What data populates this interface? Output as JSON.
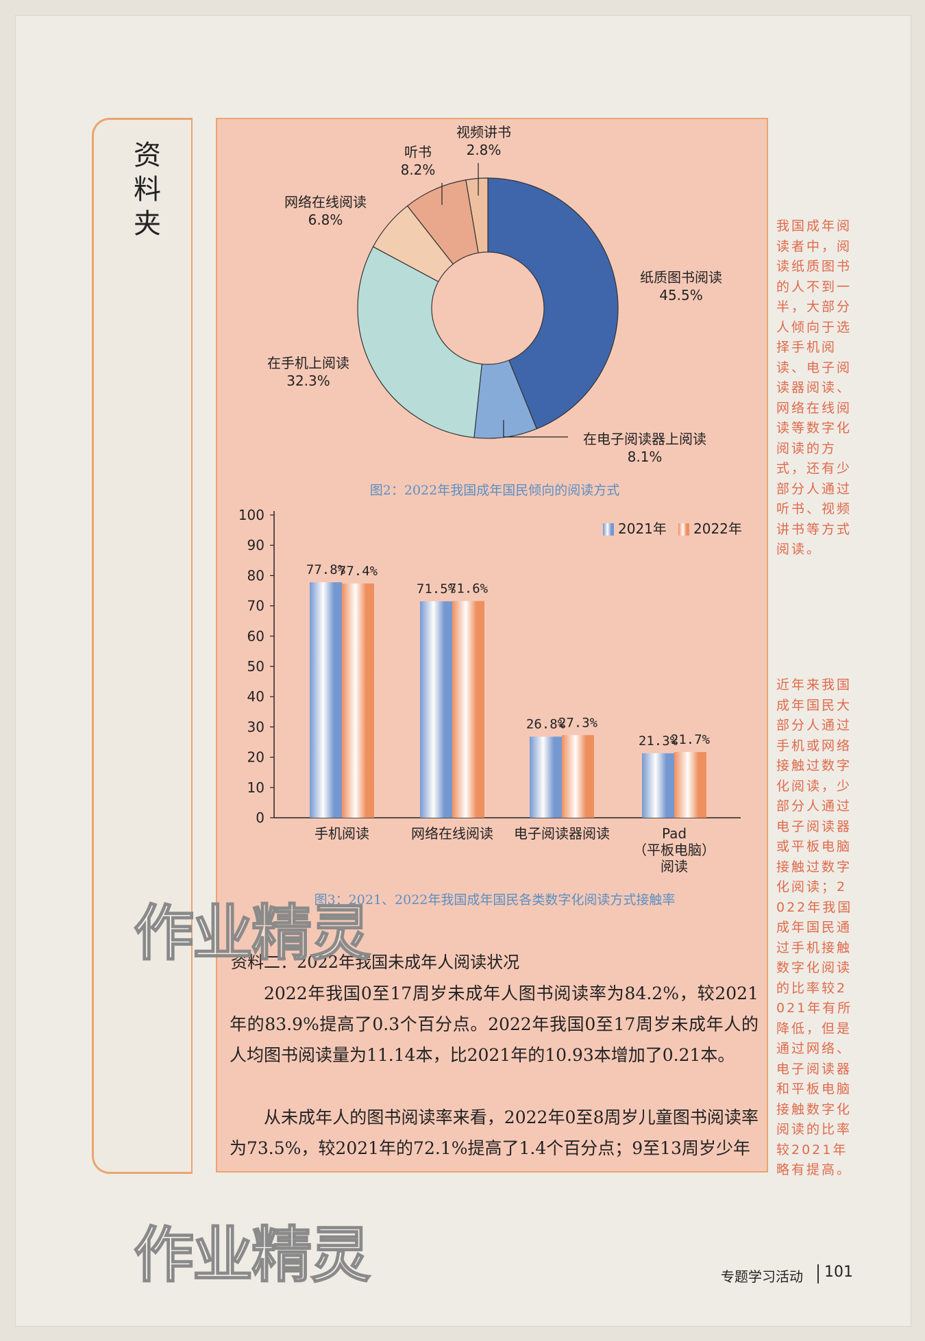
{
  "sidebar_title": "资料夹",
  "chart_data": [
    {
      "type": "pie",
      "donut": true,
      "categories": [
        "纸质图书阅读",
        "在电子阅读器上阅读",
        "在手机上阅读",
        "网络在线阅读",
        "听书",
        "视频讲书"
      ],
      "values": [
        45.5,
        8.1,
        32.3,
        6.8,
        8.2,
        2.8
      ],
      "value_labels": [
        "45.5%",
        "8.1%",
        "32.3%",
        "6.8%",
        "8.2%",
        "2.8%"
      ],
      "colors": [
        "#3f66aa",
        "#86abd9",
        "#b8ddd8",
        "#f2cdb0",
        "#e9a88c",
        "#efc0a0"
      ],
      "caption": "图2：2022年我国成年国民倾向的阅读方式"
    },
    {
      "type": "bar",
      "categories": [
        "手机阅读",
        "网络在线阅读",
        "电子阅读器阅读",
        "Pad\n（平板电脑）\n阅读"
      ],
      "series": [
        {
          "name": "2021年",
          "color": "#6f96d2",
          "values": [
            77.8,
            71.5,
            26.8,
            21.3
          ],
          "value_labels": [
            "77.8%",
            "71.5%",
            "26.8%",
            "21.3%"
          ]
        },
        {
          "name": "2022年",
          "color": "#ee8c5a",
          "values": [
            77.4,
            71.6,
            27.3,
            21.7
          ],
          "value_labels": [
            "77.4%",
            "71.6%",
            "27.3%",
            "21.7%"
          ]
        }
      ],
      "ylim": [
        0,
        100
      ],
      "yticks": [
        0,
        10,
        20,
        30,
        40,
        50,
        60,
        70,
        80,
        90,
        100
      ],
      "legend": "top-right",
      "caption": "图3：2021、2022年我国成年国民各类数字化阅读方式接触率"
    }
  ],
  "section": {
    "heading": "资料二：2022年我国未成年人阅读状况",
    "paragraphs": [
      "2022年我国0至17周岁未成年人图书阅读率为84.2%，较2021年的83.9%提高了0.3个百分点。2022年我国0至17周岁未成年人的人均图书阅读量为11.14本，比2021年的10.93本增加了0.21本。",
      "从未成年人的图书阅读率来看，2022年0至8周岁儿童图书阅读率为73.5%，较2021年的72.1%提高了1.4个百分点；9至13周岁少年"
    ]
  },
  "notes": [
    "我国成年阅读者中，阅读纸质图书的人不到一半，大部分人倾向于选择手机阅读、电子阅读器阅读、网络在线阅读等数字化阅读的方式，还有少部分人通过听书、视频讲书等方式阅读。",
    "近年来我国成年国民大部分人通过手机或网络接触过数字化阅读，少部分人通过电子阅读器或平板电脑接触过数字化阅读；2022年我国成年国民通过手机接触数字化阅读的比率较2021年有所降低，但是通过网络、电子阅读器和平板电脑接触数字化阅读的比率较2021年略有提高。"
  ],
  "watermarks": [
    "作业精灵",
    "作业精灵"
  ],
  "footer": {
    "section": "专题学习活动",
    "page": "101"
  }
}
